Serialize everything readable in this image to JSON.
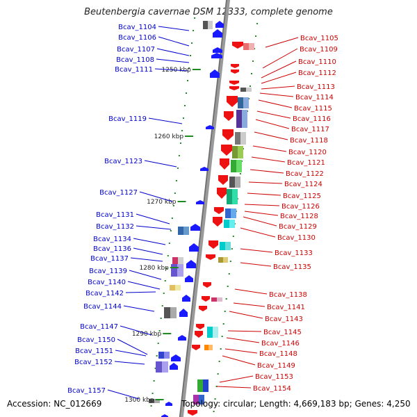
{
  "title": "Beutenbergia cavernae DSM 12333, complete genome",
  "footer": {
    "accession": "Accession: NC_012669",
    "topology": "Topology: circular; Length: 4,669,183 bp; Genes: 4,250"
  },
  "colors": {
    "left_label": "#0000cc",
    "right_label": "#cc0000",
    "backbone": "#808080",
    "tick": "#1f8a1f",
    "left_arrow": "#1a1aff",
    "right_arrow": "#ee1111"
  },
  "scale_labels": [
    "1250 kbp",
    "1260 kbp",
    "1270 kbp",
    "1280 kbp",
    "1290 kbp",
    "1300 kbp"
  ],
  "left_genes": [
    "Bcav_1104",
    "Bcav_1106",
    "Bcav_1107",
    "Bcav_1108",
    "Bcav_1111",
    "Bcav_1119",
    "Bcav_1123",
    "Bcav_1127",
    "Bcav_1131",
    "Bcav_1132",
    "Bcav_1134",
    "Bcav_1136",
    "Bcav_1137",
    "Bcav_1139",
    "Bcav_1140",
    "Bcav_1142",
    "Bcav_1144",
    "Bcav_1147",
    "Bcav_1150",
    "Bcav_1151",
    "Bcav_1152",
    "Bcav_1157"
  ],
  "right_genes": [
    "Bcav_1105",
    "Bcav_1109",
    "Bcav_1110",
    "Bcav_1112",
    "Bcav_1113",
    "Bcav_1114",
    "Bcav_1115",
    "Bcav_1116",
    "Bcav_1117",
    "Bcav_1118",
    "Bcav_1120",
    "Bcav_1121",
    "Bcav_1122",
    "Bcav_1124",
    "Bcav_1125",
    "Bcav_1126",
    "Bcav_1128",
    "Bcav_1129",
    "Bcav_1130",
    "Bcav_1133",
    "Bcav_1135",
    "Bcav_1138",
    "Bcav_1141",
    "Bcav_1143",
    "Bcav_1145",
    "Bcav_1146",
    "Bcav_1148",
    "Bcav_1149",
    "Bcav_1153",
    "Bcav_1154"
  ]
}
